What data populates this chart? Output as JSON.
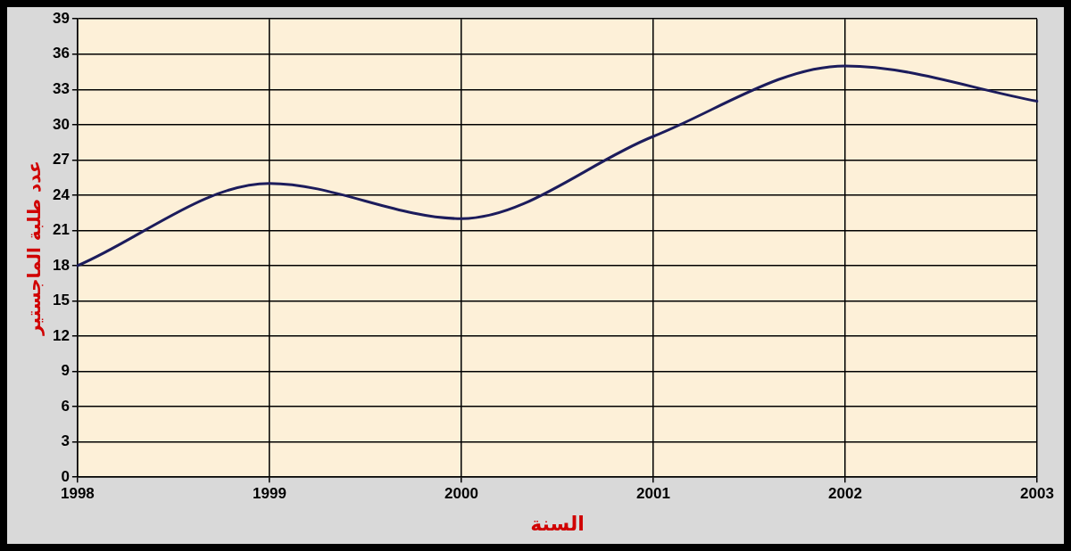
{
  "chart_data": {
    "type": "line",
    "xlabel": "السنة",
    "ylabel": "عدد طلبة الماجستير",
    "categories": [
      "1998",
      "1999",
      "2000",
      "2001",
      "2002",
      "2003"
    ],
    "series": [
      {
        "color": "#1c1c5c",
        "values": [
          18,
          25,
          22,
          29,
          35,
          32
        ]
      }
    ],
    "ylim": [
      0,
      39
    ],
    "yticks": [
      0,
      3,
      6,
      9,
      12,
      15,
      18,
      21,
      24,
      27,
      30,
      33,
      36,
      39
    ],
    "grid": true,
    "legend": false,
    "marker": "none",
    "line_style": "solid"
  }
}
